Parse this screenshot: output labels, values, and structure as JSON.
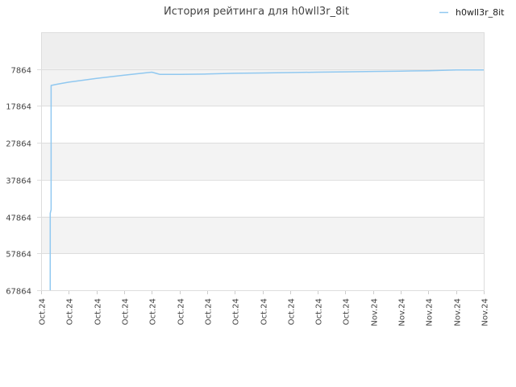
{
  "chart_data": {
    "type": "line",
    "title": "История рейтинга для h0wll3r_8it",
    "series": [
      {
        "name": "h0wll3r_8it",
        "color": "#90c8f0",
        "points": [
          [
            0.33,
            67864
          ],
          [
            0.33,
            47000
          ],
          [
            0.36,
            46000
          ],
          [
            0.36,
            12300
          ],
          [
            0.55,
            12000
          ],
          [
            1.0,
            11400
          ],
          [
            2.0,
            10400
          ],
          [
            3.0,
            9500
          ],
          [
            4.0,
            8700
          ],
          [
            4.2,
            9100
          ],
          [
            4.3,
            9300
          ],
          [
            5.0,
            9300
          ],
          [
            6.0,
            9200
          ],
          [
            7.0,
            9000
          ],
          [
            8.0,
            8900
          ],
          [
            9.0,
            8800
          ],
          [
            10.0,
            8700
          ],
          [
            11.0,
            8600
          ],
          [
            12.0,
            8500
          ],
          [
            13.0,
            8400
          ],
          [
            14.0,
            8300
          ],
          [
            15.0,
            8100
          ],
          [
            16.0,
            8100
          ]
        ]
      }
    ],
    "x_tick_labels": [
      "Oct.24",
      "Oct.24",
      "Oct.24",
      "Oct.24",
      "Oct.24",
      "Oct.24",
      "Oct.24",
      "Oct.24",
      "Oct.24",
      "Oct.24",
      "Oct.24",
      "Oct.24",
      "Nov.24",
      "Nov.24",
      "Nov.24",
      "Nov.24",
      "Nov.24"
    ],
    "y_ticks": [
      7864,
      17864,
      27864,
      37864,
      47864,
      57864,
      67864
    ],
    "ylim": [
      67864,
      -2136
    ],
    "xlim": [
      0,
      16
    ],
    "y_inverted": true,
    "grid": true,
    "band_colors": [
      "#eeeeee",
      "#f3f3f3",
      "#ffffff"
    ],
    "legend_position": "top-right"
  }
}
